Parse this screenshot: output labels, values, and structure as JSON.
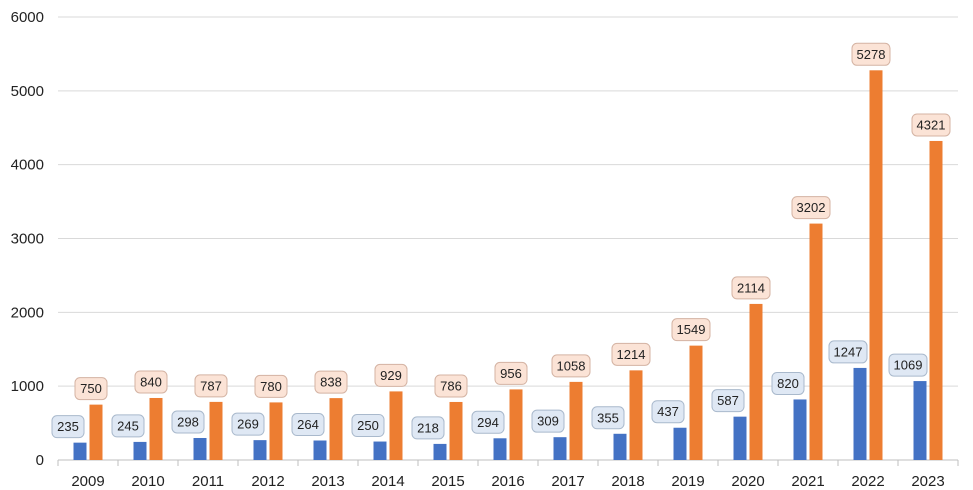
{
  "chart_data": {
    "type": "bar",
    "categories": [
      "2009",
      "2010",
      "2011",
      "2012",
      "2013",
      "2014",
      "2015",
      "2016",
      "2017",
      "2018",
      "2019",
      "2020",
      "2021",
      "2022",
      "2023"
    ],
    "series": [
      {
        "values": [
          235,
          245,
          298,
          269,
          264,
          250,
          218,
          294,
          309,
          355,
          437,
          587,
          820,
          1247,
          1069
        ],
        "color": "#4472c4",
        "label_fill": "#dfe8f4",
        "label_stroke": "#a9b9cc"
      },
      {
        "values": [
          750,
          840,
          787,
          780,
          838,
          929,
          786,
          956,
          1058,
          1214,
          1549,
          2114,
          3202,
          5278,
          4321
        ],
        "color": "#ed7d31",
        "label_fill": "#fbe3d6",
        "label_stroke": "#d4b3a3"
      }
    ],
    "ylim": [
      0,
      6000
    ],
    "yticks": [
      0,
      1000,
      2000,
      3000,
      4000,
      5000,
      6000
    ],
    "grid": true,
    "title": "",
    "xlabel": "",
    "ylabel": ""
  }
}
